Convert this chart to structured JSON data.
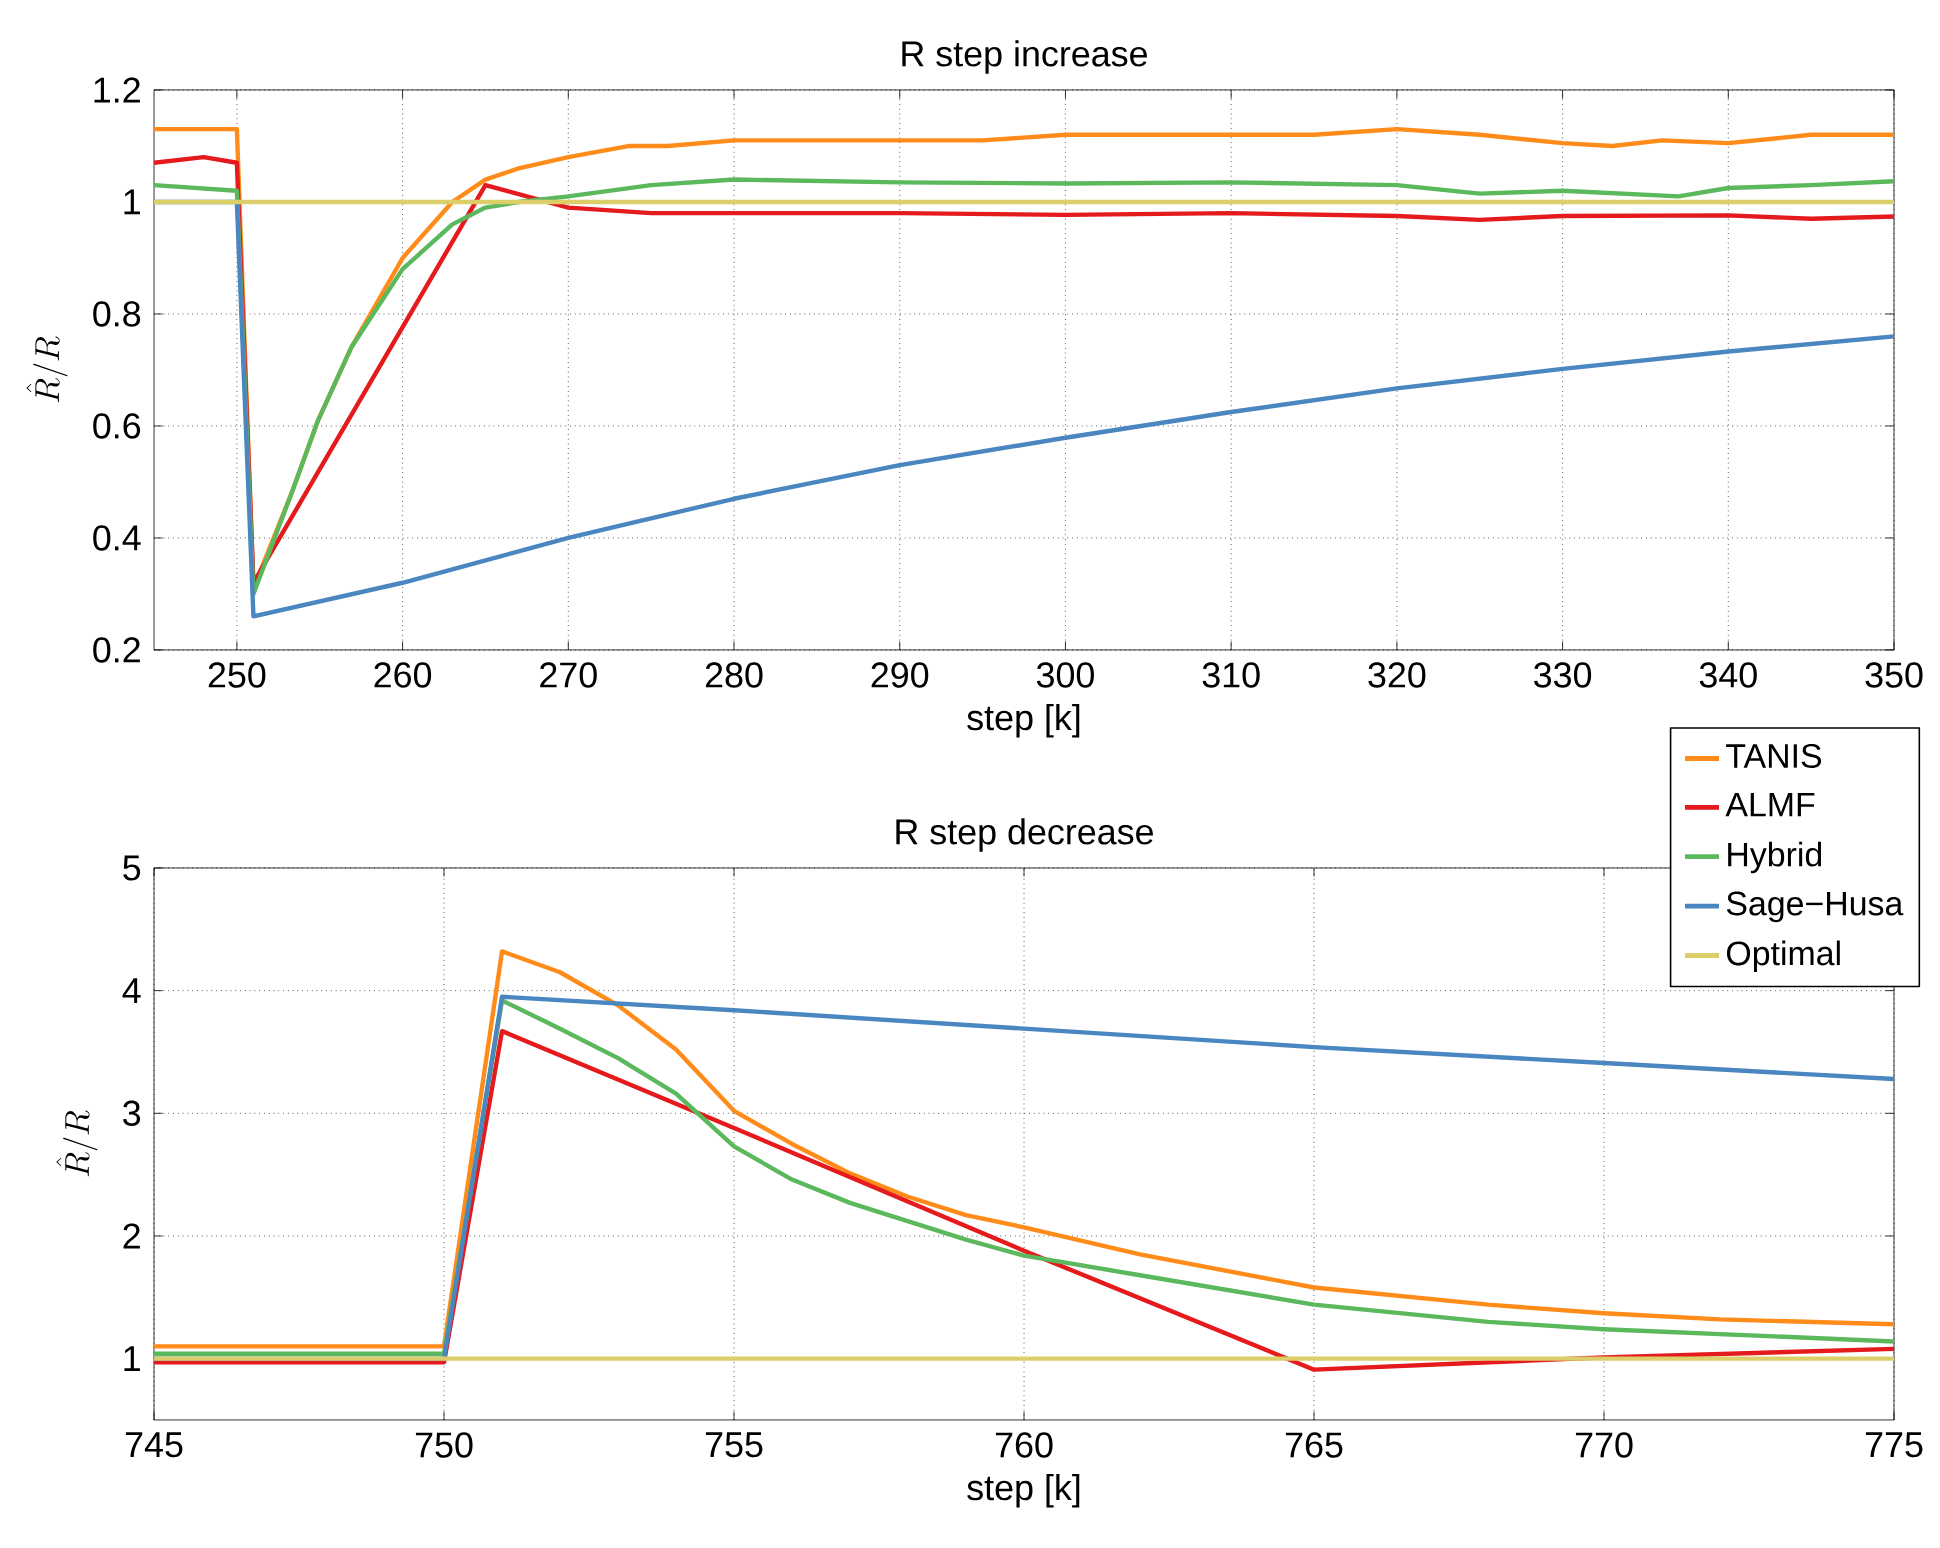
{
  "chart_data": [
    {
      "type": "line",
      "title": "R step increase",
      "xlabel": "step [k]",
      "ylabel": "\\hat{R}/R",
      "xlim": [
        245,
        350
      ],
      "ylim": [
        0.2,
        1.2
      ],
      "xticks": [
        250,
        260,
        270,
        280,
        290,
        300,
        310,
        320,
        330,
        340,
        350
      ],
      "yticks": [
        0.2,
        0.4,
        0.6,
        0.8,
        1,
        1.2
      ],
      "grid": true,
      "legend": false,
      "line_style": "solid",
      "marker": "none",
      "series": [
        {
          "color": "#ff8c1a",
          "x": [
            245,
            248,
            250,
            251,
            253.3,
            254.9,
            256.9,
            260,
            263,
            265,
            267,
            270,
            273.7,
            276,
            280,
            285,
            290,
            295,
            300,
            305,
            310,
            315,
            320,
            325,
            330,
            333,
            336,
            340,
            345,
            350
          ],
          "values": [
            1.13,
            1.13,
            1.13,
            0.31,
            0.48,
            0.61,
            0.74,
            0.9,
            1.0,
            1.04,
            1.06,
            1.08,
            1.1,
            1.1,
            1.11,
            1.11,
            1.11,
            1.11,
            1.12,
            1.12,
            1.12,
            1.12,
            1.13,
            1.12,
            1.105,
            1.1,
            1.11,
            1.105,
            1.12,
            1.12
          ]
        },
        {
          "color": "#e41a1c",
          "x": [
            245,
            248,
            250,
            251,
            265,
            270,
            275,
            280,
            290,
            300,
            310,
            320,
            325,
            330,
            340,
            345,
            350
          ],
          "values": [
            1.07,
            1.08,
            1.07,
            0.32,
            1.03,
            0.99,
            0.98,
            0.98,
            0.98,
            0.977,
            0.98,
            0.975,
            0.968,
            0.975,
            0.976,
            0.97,
            0.974
          ]
        },
        {
          "color": "#5cb85c",
          "x": [
            245,
            250,
            251,
            253.3,
            254.9,
            256.9,
            260,
            263,
            265,
            267,
            270,
            275,
            280,
            290,
            300,
            310,
            320,
            325,
            330,
            337,
            340,
            345,
            350
          ],
          "values": [
            1.03,
            1.02,
            0.3,
            0.48,
            0.61,
            0.74,
            0.88,
            0.96,
            0.99,
            1.0,
            1.01,
            1.03,
            1.04,
            1.035,
            1.033,
            1.035,
            1.03,
            1.015,
            1.02,
            1.01,
            1.025,
            1.03,
            1.037
          ]
        },
        {
          "color": "#4a86c0",
          "x": [
            245,
            250,
            251,
            260,
            270,
            280,
            290,
            300,
            310,
            320,
            330,
            340,
            350
          ],
          "values": [
            1.0,
            1.0,
            0.26,
            0.32,
            0.4,
            0.47,
            0.53,
            0.579,
            0.625,
            0.667,
            0.702,
            0.733,
            0.76
          ]
        },
        {
          "color": "#dccf6a",
          "x": [
            245,
            350
          ],
          "values": [
            1.0,
            1.0
          ]
        }
      ]
    },
    {
      "type": "line",
      "title": "R step decrease",
      "xlabel": "step [k]",
      "ylabel": "\\hat{R}/R",
      "xlim": [
        745,
        775
      ],
      "ylim": [
        0.5,
        5
      ],
      "xticks": [
        745,
        750,
        755,
        760,
        765,
        770,
        775
      ],
      "yticks": [
        1,
        2,
        3,
        4,
        5
      ],
      "grid": true,
      "legend": "top right",
      "line_style": "solid",
      "marker": "none",
      "series": [
        {
          "name": "TANIS",
          "color": "#ff8c1a",
          "x": [
            745,
            750,
            751,
            752,
            753,
            754,
            755,
            756,
            757,
            758,
            759,
            760,
            762,
            765,
            768,
            770,
            772,
            775
          ],
          "values": [
            1.1,
            1.1,
            4.32,
            4.15,
            3.88,
            3.52,
            3.02,
            2.75,
            2.51,
            2.32,
            2.17,
            2.07,
            1.85,
            1.58,
            1.44,
            1.37,
            1.32,
            1.28
          ]
        },
        {
          "name": "ALMF",
          "color": "#e41a1c",
          "x": [
            745,
            750,
            751,
            755,
            760,
            765,
            770,
            775
          ],
          "values": [
            0.97,
            0.97,
            3.67,
            2.88,
            1.88,
            0.91,
            1.01,
            1.08
          ]
        },
        {
          "name": "Hybrid",
          "color": "#5cb85c",
          "x": [
            745,
            750,
            751,
            752,
            753,
            754,
            755,
            756,
            757,
            758,
            759,
            760,
            762,
            765,
            768,
            770,
            775
          ],
          "values": [
            1.04,
            1.04,
            3.92,
            3.69,
            3.45,
            3.16,
            2.73,
            2.46,
            2.27,
            2.12,
            1.97,
            1.84,
            1.68,
            1.44,
            1.3,
            1.24,
            1.14
          ]
        },
        {
          "name": "Sage−Husa",
          "color": "#4a86c0",
          "x": [
            745,
            750,
            751,
            755,
            760,
            765,
            770,
            775
          ],
          "values": [
            1.0,
            1.0,
            3.95,
            3.84,
            3.69,
            3.54,
            3.41,
            3.28
          ]
        },
        {
          "name": "Optimal",
          "color": "#dccf6a",
          "x": [
            745,
            775
          ],
          "values": [
            1.0,
            1.0
          ]
        }
      ]
    }
  ]
}
